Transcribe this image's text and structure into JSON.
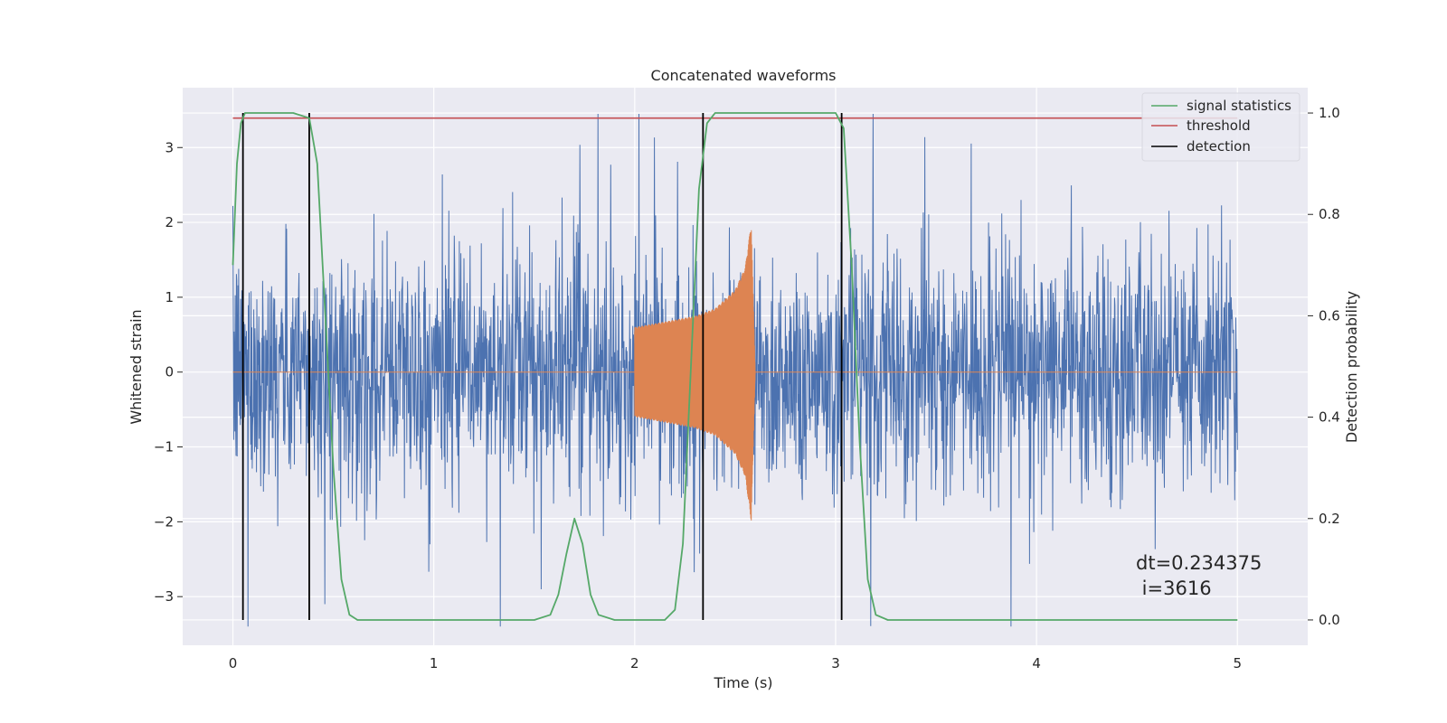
{
  "chart_data": {
    "type": "line",
    "title": "Concatenated waveforms",
    "xlabel": "Time (s)",
    "ylabel_left": "Whitened strain",
    "ylabel_right": "Detection probability",
    "xlim": [
      -0.25,
      5.35
    ],
    "ylim_left": [
      -3.65,
      3.8
    ],
    "ylim_right": [
      -0.05,
      1.05
    ],
    "x_ticks": [
      0,
      1,
      2,
      3,
      4,
      5
    ],
    "x_tick_labels": [
      "0",
      "1",
      "2",
      "3",
      "4",
      "5"
    ],
    "y_left_ticks": [
      -3,
      -2,
      -1,
      0,
      1,
      2,
      3
    ],
    "y_left_tick_labels": [
      "−3",
      "−2",
      "−1",
      "0",
      "1",
      "2",
      "3"
    ],
    "y_right_ticks": [
      0.0,
      0.2,
      0.4,
      0.6,
      0.8,
      1.0
    ],
    "y_right_tick_labels": [
      "0.0",
      "0.2",
      "0.4",
      "0.6",
      "0.8",
      "1.0"
    ],
    "grid": true,
    "legend_position": "upper right",
    "colors": {
      "background": "#eaeaf2",
      "grid": "#ffffff",
      "noise": "#4c72b0",
      "signal": "#dd8452",
      "statistics": "#55a868",
      "threshold": "#c44e52",
      "detection": "#000000"
    },
    "series": [
      {
        "name": "",
        "axis": "left",
        "description_type": "whitened noisy strain, amplitude roughly ±2.5 with spikes up to ±3.5",
        "x_range": [
          0,
          5
        ]
      },
      {
        "name": "",
        "axis": "left",
        "description_type": "injected chirp signal",
        "x_range": [
          2.0,
          2.6
        ],
        "envelope": {
          "x": [
            2.0,
            2.1,
            2.2,
            2.3,
            2.4,
            2.5,
            2.55,
            2.58,
            2.6
          ],
          "y": [
            0.6,
            0.65,
            0.7,
            0.75,
            0.85,
            1.1,
            1.4,
            2.0,
            0.0
          ]
        }
      },
      {
        "name": "signal statistics",
        "axis": "right",
        "x": [
          0,
          0.02,
          0.04,
          0.06,
          0.08,
          0.1,
          0.3,
          0.38,
          0.42,
          0.46,
          0.5,
          0.54,
          0.58,
          0.62,
          1.0,
          1.5,
          1.58,
          1.62,
          1.66,
          1.7,
          1.74,
          1.78,
          1.82,
          1.9,
          2.0,
          2.15,
          2.2,
          2.24,
          2.28,
          2.32,
          2.36,
          2.4,
          3.0,
          3.04,
          3.08,
          3.12,
          3.16,
          3.2,
          3.26,
          4.0,
          5.0
        ],
        "y": [
          0.7,
          0.9,
          0.98,
          1.0,
          1.0,
          1.0,
          1.0,
          0.99,
          0.9,
          0.6,
          0.3,
          0.08,
          0.01,
          0.0,
          0.0,
          0.0,
          0.01,
          0.05,
          0.13,
          0.2,
          0.15,
          0.05,
          0.01,
          0.0,
          0.0,
          0.0,
          0.02,
          0.15,
          0.5,
          0.85,
          0.98,
          1.0,
          1.0,
          0.97,
          0.7,
          0.35,
          0.08,
          0.01,
          0.0,
          0.0,
          0.0
        ]
      },
      {
        "name": "threshold",
        "axis": "right",
        "x": [
          0,
          5
        ],
        "y": [
          0.99,
          0.99
        ]
      }
    ],
    "detection": {
      "name": "detection",
      "axis": "right",
      "x": [
        0.05,
        0.38,
        2.34,
        3.03
      ],
      "y_range": [
        0.0,
        1.0
      ]
    },
    "legend": [
      "signal statistics",
      "threshold",
      "detection"
    ],
    "annotation": {
      "line1": "dt=0.234375",
      "line2": " i=3616"
    }
  }
}
